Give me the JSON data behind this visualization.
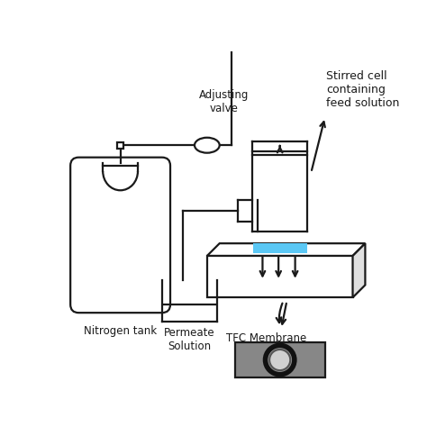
{
  "bg_color": "#ffffff",
  "line_color": "#1a1a1a",
  "blue_color": "#5bc8f5",
  "labels": {
    "nitrogen": "Nitrogen tank",
    "permeate": "Permeate\nSolution",
    "adjusting": "Adjusting\nvalve",
    "stirred": "Stirred cell\ncontaining\nfeed solution",
    "tfc": "TFC Membrane"
  },
  "label_fontsize": 8.5,
  "photo_colors": {
    "bg": "#888888",
    "ring_dark": "#111111",
    "ring_mid": "#aaaaaa",
    "membrane": "#d8d8d8",
    "photo_bg2": "#999999"
  }
}
